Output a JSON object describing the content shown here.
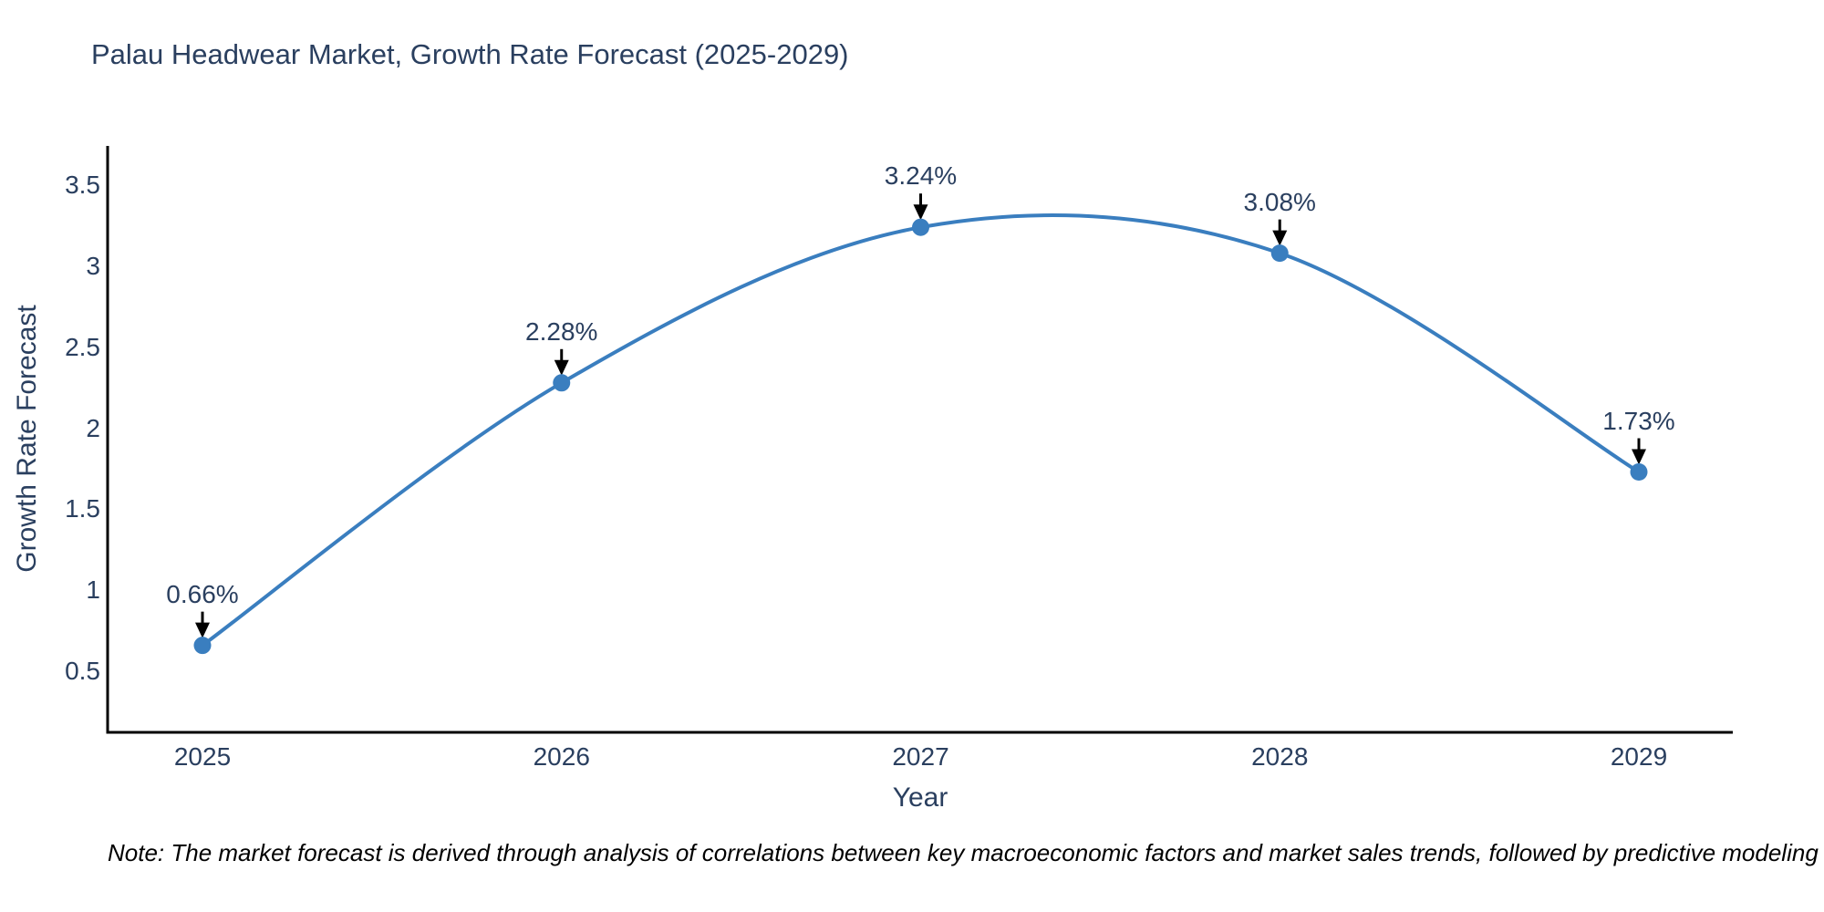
{
  "title": "Palau Headwear Market, Growth Rate Forecast (2025-2029)",
  "note": "Note: The market forecast is derived through analysis of correlations between key macroeconomic factors and market sales trends, followed by predictive modeling to project future sales",
  "axes": {
    "x_title": "Year",
    "y_title": "Growth Rate Forecast"
  },
  "colors": {
    "line": "#3a7ebf",
    "marker": "#3a7ebf",
    "axis_line": "#000000",
    "arrow": "#000000",
    "text": "#2a3f5f",
    "note_text": "#000000",
    "background": "#ffffff"
  },
  "chart_data": {
    "type": "line",
    "line_shape": "spline",
    "title": "Palau Headwear Market, Growth Rate Forecast (2025-2029)",
    "xlabel": "Year",
    "ylabel": "Growth Rate Forecast",
    "x": [
      2025,
      2026,
      2027,
      2028,
      2029
    ],
    "series": [
      {
        "name": "Growth Rate Forecast",
        "values": [
          0.66,
          2.28,
          3.24,
          3.08,
          1.73
        ]
      }
    ],
    "point_labels": [
      "0.66%",
      "2.28%",
      "3.24%",
      "3.08%",
      "1.73%"
    ],
    "xticks": [
      "2025",
      "2026",
      "2027",
      "2028",
      "2029"
    ],
    "yticks": [
      "0.5",
      "1",
      "1.5",
      "2",
      "2.5",
      "3",
      "3.5"
    ],
    "ylim": [
      0.13,
      3.74
    ],
    "grid": false,
    "legend": "none",
    "annotations_arrow": "down-to-point"
  }
}
